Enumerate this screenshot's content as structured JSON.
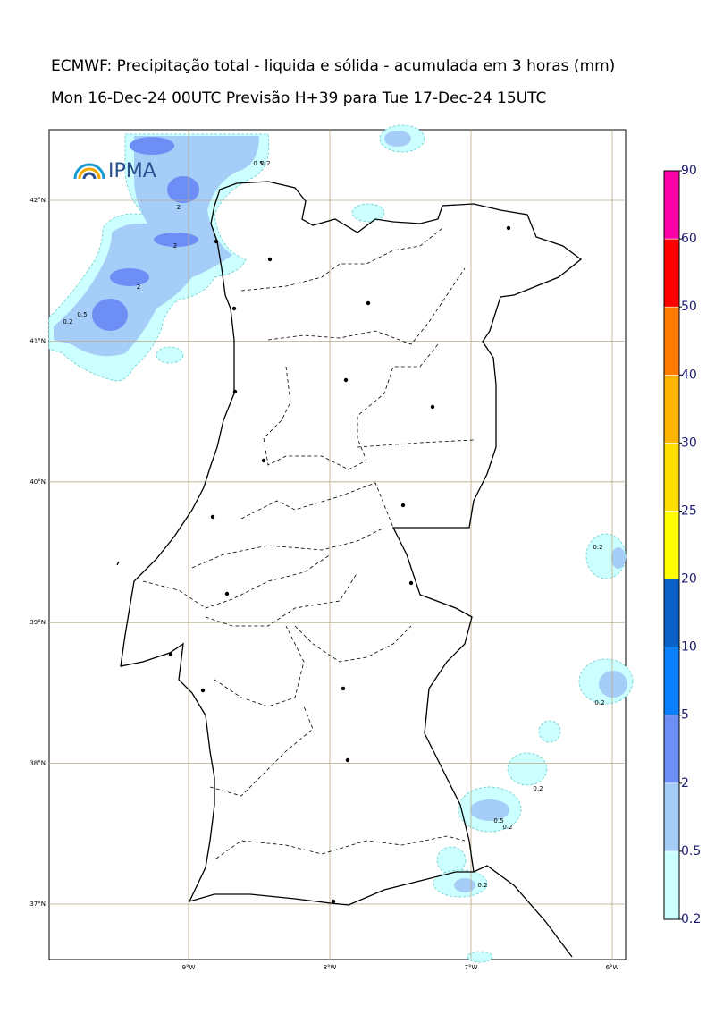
{
  "title": "ECMWF: Precipitação total - liquida e sólida - acumulada em 3 horas (mm)",
  "subtitle": "Mon 16-Dec-24 00UTC Previsão H+39 para Tue 17-Dec-24 15UTC",
  "logo": "IPMA",
  "map": {
    "lon_ticks": [
      {
        "value": -9,
        "label": "9°W"
      },
      {
        "value": -8,
        "label": "8°W"
      },
      {
        "value": -7,
        "label": "7°W"
      },
      {
        "value": -6,
        "label": "6°W"
      }
    ],
    "lat_ticks": [
      {
        "value": 42,
        "label": "42°N"
      },
      {
        "value": 41,
        "label": "41°N"
      },
      {
        "value": 40,
        "label": "40°N"
      },
      {
        "value": 39,
        "label": "39°N"
      },
      {
        "value": 38,
        "label": "38°N"
      },
      {
        "value": 37,
        "label": "37°N"
      }
    ],
    "contour_labels": [
      "0.5",
      "0.2",
      "2",
      "2",
      "2",
      "0.5",
      "0.2",
      "0.2",
      "0.2",
      "0.2",
      "0.5",
      "0.2",
      "0.2"
    ]
  },
  "colorbar": {
    "levels": [
      0.2,
      0.5,
      2,
      5,
      10,
      20,
      25,
      30,
      40,
      50,
      60,
      90
    ],
    "colors": [
      "#ccffff",
      "#a6cdf7",
      "#6d8ef5",
      "#0a80ff",
      "#0a62c8",
      "#ffff00",
      "#ffde00",
      "#ffb400",
      "#ff7c00",
      "#ff0000",
      "#ff00a8"
    ]
  }
}
